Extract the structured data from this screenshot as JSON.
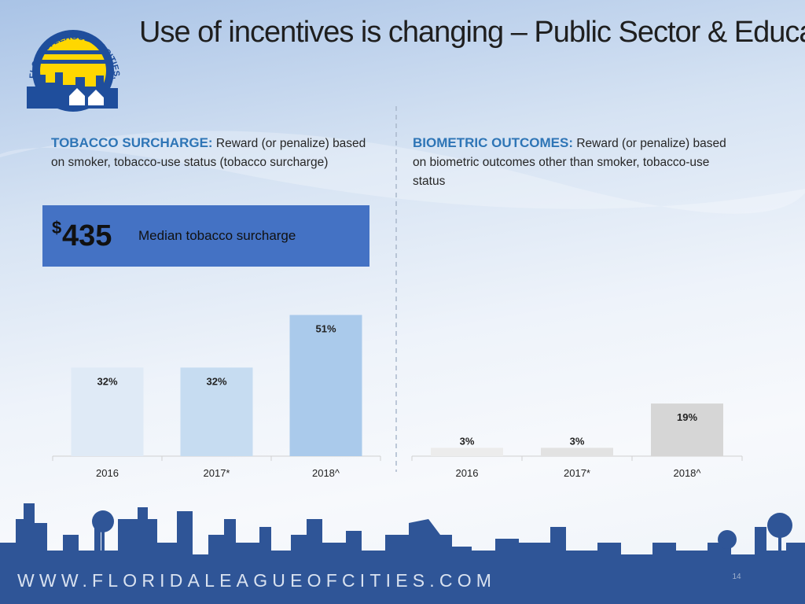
{
  "slide": {
    "title": "Use of incentives is changing – Public Sector & Education",
    "logo_text": "FLORIDA LEAGUE OF CITIES, INC.",
    "left": {
      "heading": "TOBACCO SURCHARGE:",
      "text": "Reward (or penalize) based on smoker, tobacco-use status (tobacco surcharge)"
    },
    "right": {
      "heading": "BIOMETRIC OUTCOMES:",
      "text": "Reward (or penalize) based on biometric outcomes other than smoker, tobacco-use status"
    },
    "callout": {
      "symbol": "$",
      "amount": "435",
      "label": "Median tobacco surcharge"
    },
    "footer": "WWW.FLORIDALEAGUEOFCITIES.COM",
    "page_number": "14"
  },
  "chart_data": [
    {
      "type": "bar",
      "categories": [
        "2016",
        "2017*",
        "2018^"
      ],
      "values": [
        32,
        32,
        51
      ],
      "value_labels": [
        "32%",
        "32%",
        "51%"
      ],
      "colors": [
        "#dfeaf6",
        "#c6dcf1",
        "#aacaeb"
      ]
    },
    {
      "type": "bar",
      "categories": [
        "2016",
        "2017*",
        "2018^"
      ],
      "values": [
        3,
        3,
        19
      ],
      "value_labels": [
        "3%",
        "3%",
        "19%"
      ],
      "colors": [
        "#ececec",
        "#e2e2e2",
        "#d6d6d6"
      ]
    }
  ]
}
